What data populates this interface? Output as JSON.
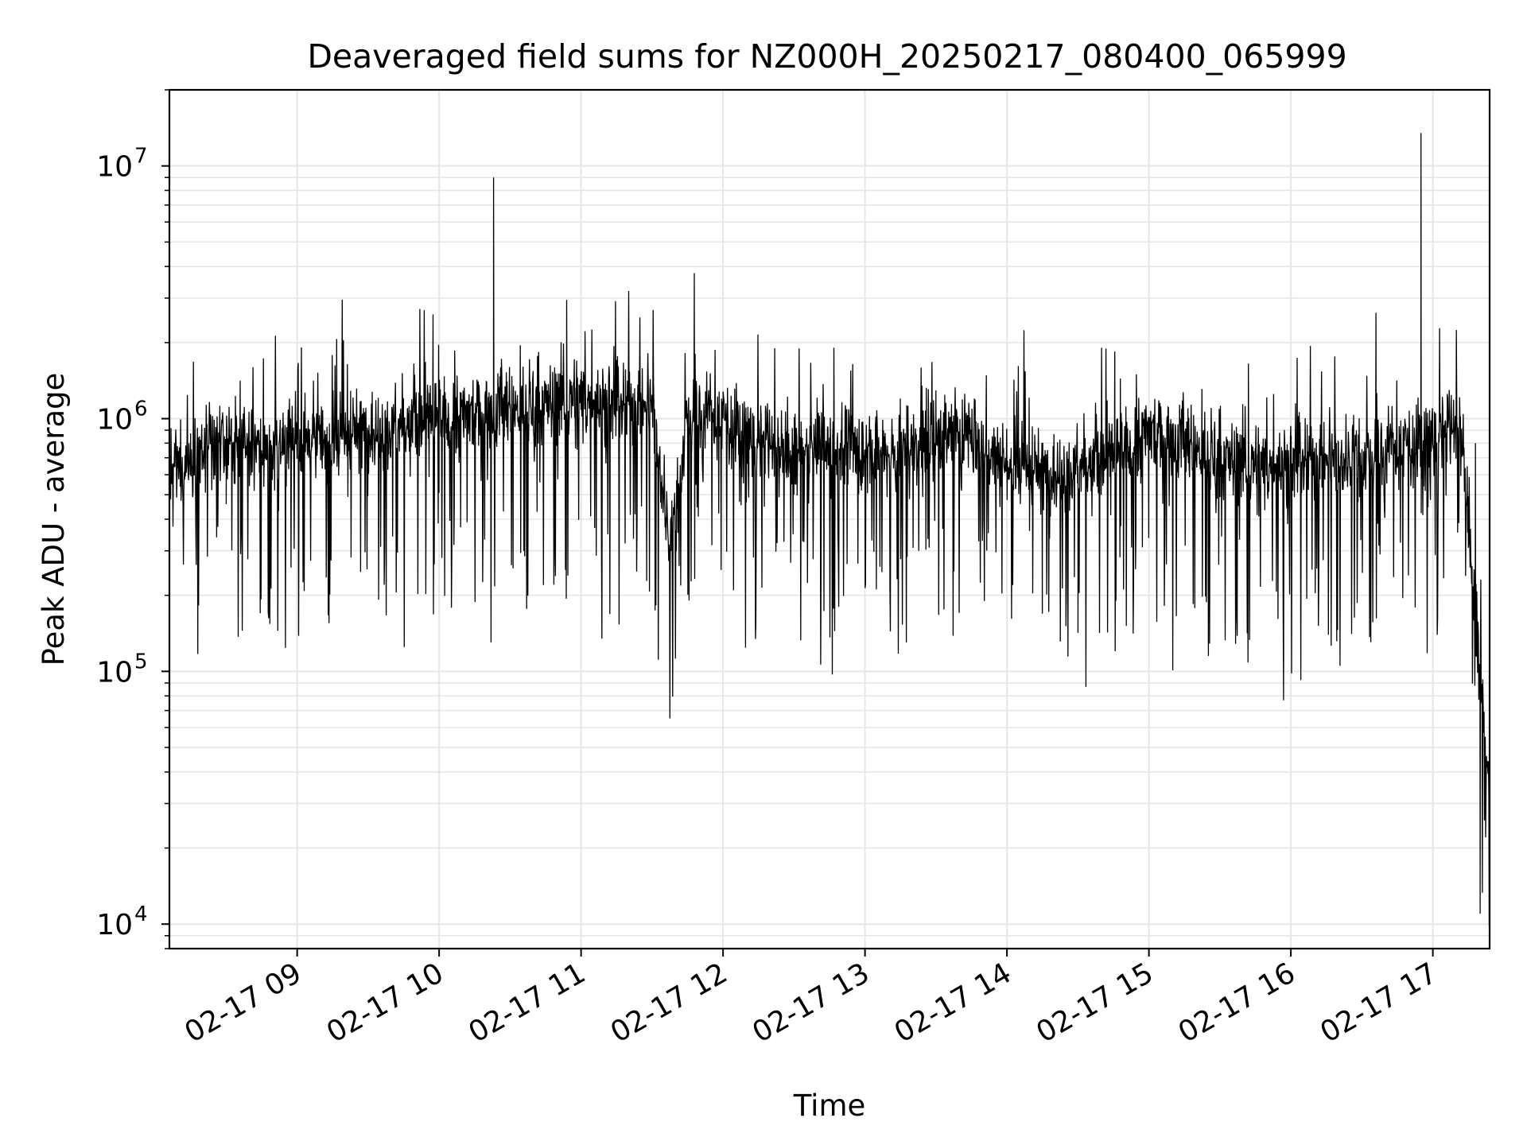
{
  "chart_data": {
    "type": "line",
    "title": "Deaveraged field sums for NZ000H_20250217_080400_065999",
    "xlabel": "Time",
    "ylabel": "Peak ADU - average",
    "y_scale": "log",
    "ylim": [
      8000,
      20000000
    ],
    "xlim": [
      "2025-02-17T08:06:00",
      "2025-02-17T17:24:00"
    ],
    "grid": true,
    "line_color": "#000000",
    "grid_color": "#e6e6e6",
    "x_tick_labels": [
      "02-17 09",
      "02-17 10",
      "02-17 11",
      "02-17 12",
      "02-17 13",
      "02-17 14",
      "02-17 15",
      "02-17 16",
      "02-17 17"
    ],
    "x_tick_times": [
      "2025-02-17T09:00:00",
      "2025-02-17T10:00:00",
      "2025-02-17T11:00:00",
      "2025-02-17T12:00:00",
      "2025-02-17T13:00:00",
      "2025-02-17T14:00:00",
      "2025-02-17T15:00:00",
      "2025-02-17T16:00:00",
      "2025-02-17T17:00:00"
    ],
    "y_ticks": [
      {
        "value": 10000,
        "base": "10",
        "exp": "4"
      },
      {
        "value": 100000,
        "base": "10",
        "exp": "5"
      },
      {
        "value": 1000000,
        "base": "10",
        "exp": "6"
      },
      {
        "value": 10000000,
        "base": "10",
        "exp": "7"
      }
    ],
    "series": [
      {
        "x": [
          "2025-02-17T08:06:00",
          "2025-02-17T08:15:00",
          "2025-02-17T08:30:00",
          "2025-02-17T08:45:00",
          "2025-02-17T09:00:00",
          "2025-02-17T09:15:00",
          "2025-02-17T09:30:00",
          "2025-02-17T09:45:00",
          "2025-02-17T10:00:00",
          "2025-02-17T10:15:00",
          "2025-02-17T10:23:00",
          "2025-02-17T10:30:00",
          "2025-02-17T10:45:00",
          "2025-02-17T11:00:00",
          "2025-02-17T11:15:00",
          "2025-02-17T11:30:00",
          "2025-02-17T11:38:00",
          "2025-02-17T11:45:00",
          "2025-02-17T12:00:00",
          "2025-02-17T12:15:00",
          "2025-02-17T12:30:00",
          "2025-02-17T12:45:00",
          "2025-02-17T13:00:00",
          "2025-02-17T13:15:00",
          "2025-02-17T13:30:00",
          "2025-02-17T13:43:00",
          "2025-02-17T14:00:00",
          "2025-02-17T14:15:00",
          "2025-02-17T14:30:00",
          "2025-02-17T14:45:00",
          "2025-02-17T15:00:00",
          "2025-02-17T15:15:00",
          "2025-02-17T15:30:00",
          "2025-02-17T15:45:00",
          "2025-02-17T16:00:00",
          "2025-02-17T16:15:00",
          "2025-02-17T16:30:00",
          "2025-02-17T16:45:00",
          "2025-02-17T16:55:00",
          "2025-02-17T17:05:00",
          "2025-02-17T17:12:00",
          "2025-02-17T17:18:00",
          "2025-02-17T17:20:00",
          "2025-02-17T17:24:00"
        ],
        "y": [
          600000,
          700000,
          800000,
          750000,
          850000,
          800000,
          900000,
          950000,
          1000000,
          1050000,
          9000000,
          1100000,
          1150000,
          1200000,
          1100000,
          1150000,
          300000,
          1050000,
          1000000,
          800000,
          700000,
          750000,
          750000,
          700000,
          850000,
          900000,
          650000,
          600000,
          650000,
          700000,
          900000,
          800000,
          700000,
          650000,
          650000,
          700000,
          700000,
          700000,
          13500000,
          850000,
          900000,
          800000,
          11000,
          30000
        ]
      }
    ]
  }
}
